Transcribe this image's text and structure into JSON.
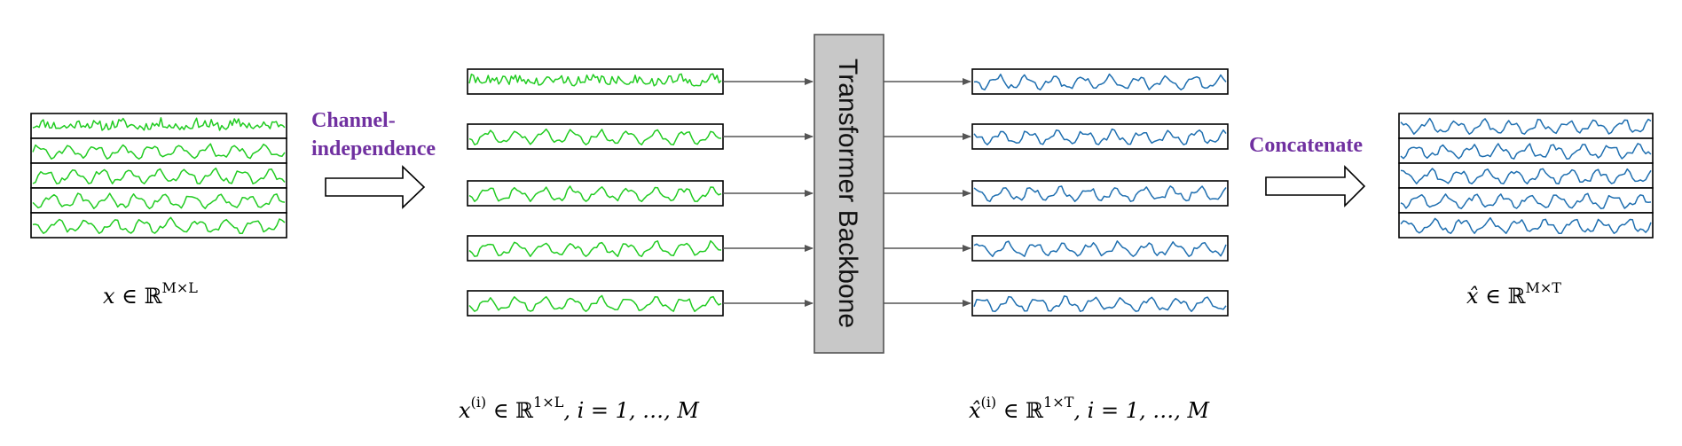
{
  "colors": {
    "input_series": "#22cc22",
    "output_series": "#1f6fb0",
    "accent_text": "#7030a0",
    "backbone_fill": "#c8c8c8",
    "arrow": "#555555"
  },
  "labels": {
    "channel_independence_line1": "Channel-",
    "channel_independence_line2": "independence",
    "concatenate": "Concatenate",
    "backbone": "Transformer Backbone"
  },
  "math": {
    "input": {
      "var": "x",
      "rel": " ∈ ℝ",
      "sup": "M×L"
    },
    "output": {
      "var": "x̂",
      "rel": " ∈ ℝ",
      "sup": "M×T"
    },
    "channel_in": {
      "var": "x",
      "sup1": "(i)",
      "rel": " ∈ ℝ",
      "sup2": "1×L",
      "tail": ", i = 1, …, M"
    },
    "channel_out": {
      "var": "x̂",
      "sup1": "(i)",
      "rel": " ∈ ℝ",
      "sup2": "1×T",
      "tail": ", i = 1, …, M"
    }
  },
  "channel_count": 5
}
